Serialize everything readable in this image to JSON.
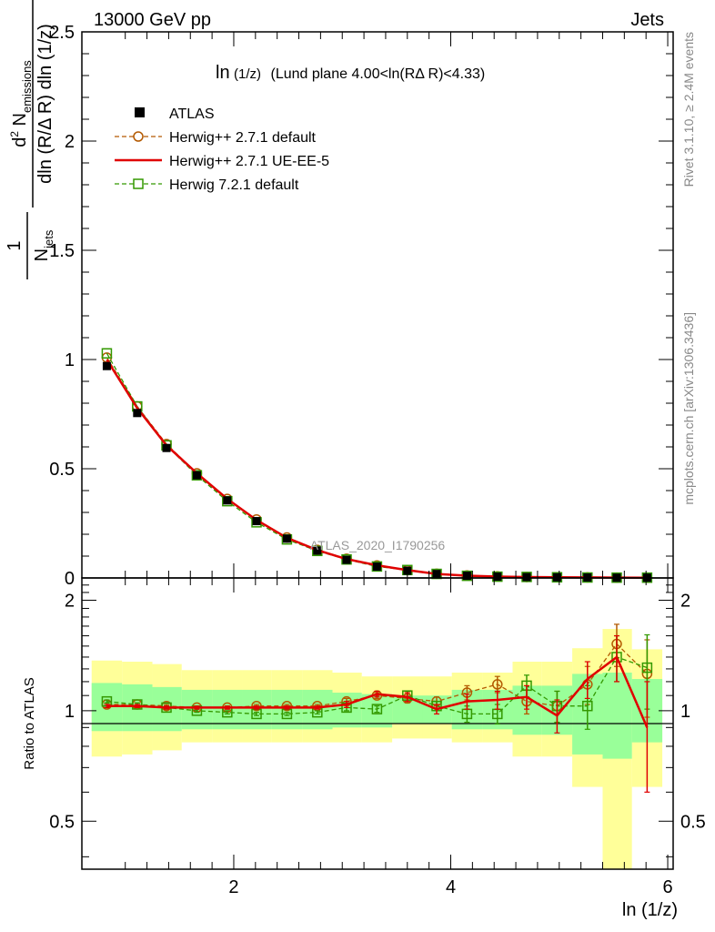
{
  "header": {
    "left": "13000 GeV pp",
    "right": "Jets",
    "subtitle_main": "ln",
    "subtitle_arg": "(1/z)",
    "subtitle_rest": "(Lund plane 4.00<ln(RΔ R)<4.33)",
    "watermark": "ATLAS_2020_I1790256",
    "side_rivet": "Rivet 3.1.10, ≥ 2.4M events",
    "side_mcplots": "mcplots.cern.ch [arXiv:1306.3436]"
  },
  "axes": {
    "ylabel_top": "1/N_jets d²N_emissions / dln(R/ΔR) dln(1/z)",
    "ylabel_bottom": "Ratio to ATLAS",
    "xlabel": "ln (1/z)",
    "top_yticks": [
      "0",
      "0.5",
      "1",
      "1.5",
      "2",
      "2.5"
    ],
    "bottom_yticks": [
      "0.5",
      "1",
      "2"
    ],
    "xticks": [
      "2",
      "4",
      "6"
    ]
  },
  "legend": [
    {
      "label": "ATLAS",
      "style": "data",
      "color": "#000000"
    },
    {
      "label": "Herwig++ 2.7.1 default",
      "style": "circle-dashed",
      "color": "#b35900"
    },
    {
      "label": "Herwig++ 2.7.1 UE-EE-5",
      "style": "solid",
      "color": "#e00000"
    },
    {
      "label": "Herwig 7.2.1 default",
      "style": "square-dashed",
      "color": "#339900"
    }
  ],
  "colors": {
    "band_outer": "#ffff99",
    "band_inner": "#99ff99",
    "data": "#000000",
    "h271_default": "#b35900",
    "h271_ueee5": "#e00000",
    "h721_default": "#339900"
  },
  "chart_data": {
    "type": "line",
    "xlim": [
      0.6,
      6.05
    ],
    "ylim_main": [
      0,
      2.5
    ],
    "ylim_ratio": [
      0.37,
      2.3
    ],
    "ratio_scale": "log",
    "x": [
      0.83,
      1.11,
      1.38,
      1.66,
      1.94,
      2.21,
      2.49,
      2.77,
      3.04,
      3.32,
      3.6,
      3.87,
      4.15,
      4.43,
      4.7,
      4.98,
      5.26,
      5.53,
      5.81
    ],
    "bin_edges": [
      0.69,
      0.97,
      1.25,
      1.52,
      1.8,
      2.08,
      2.35,
      2.63,
      2.91,
      3.18,
      3.46,
      3.74,
      4.01,
      4.29,
      4.57,
      4.84,
      5.12,
      5.4,
      5.67,
      5.95
    ],
    "data_values": [
      0.97,
      0.755,
      0.595,
      0.47,
      0.355,
      0.26,
      0.18,
      0.125,
      0.083,
      0.052,
      0.033,
      0.018,
      0.01,
      0.006,
      0.004,
      0.003,
      0.002,
      0.001,
      0.001
    ],
    "band_outer": [
      [
        0.75,
        1.37
      ],
      [
        0.76,
        1.36
      ],
      [
        0.78,
        1.34
      ],
      [
        0.82,
        1.29
      ],
      [
        0.82,
        1.29
      ],
      [
        0.82,
        1.29
      ],
      [
        0.82,
        1.29
      ],
      [
        0.82,
        1.29
      ],
      [
        0.82,
        1.27
      ],
      [
        0.82,
        1.24
      ],
      [
        0.84,
        1.24
      ],
      [
        0.84,
        1.24
      ],
      [
        0.82,
        1.27
      ],
      [
        0.82,
        1.27
      ],
      [
        0.75,
        1.36
      ],
      [
        0.75,
        1.36
      ],
      [
        0.62,
        1.48
      ],
      [
        0.36,
        1.67
      ],
      [
        0.62,
        1.47
      ]
    ],
    "band_inner": [
      [
        0.88,
        1.19
      ],
      [
        0.88,
        1.18
      ],
      [
        0.88,
        1.16
      ],
      [
        0.89,
        1.14
      ],
      [
        0.89,
        1.14
      ],
      [
        0.89,
        1.14
      ],
      [
        0.89,
        1.14
      ],
      [
        0.89,
        1.14
      ],
      [
        0.9,
        1.12
      ],
      [
        0.9,
        1.11
      ],
      [
        0.92,
        1.1
      ],
      [
        0.92,
        1.1
      ],
      [
        0.89,
        1.14
      ],
      [
        0.89,
        1.14
      ],
      [
        0.86,
        1.17
      ],
      [
        0.86,
        1.17
      ],
      [
        0.76,
        1.26
      ],
      [
        0.74,
        1.27
      ],
      [
        0.82,
        1.22
      ]
    ],
    "series": [
      {
        "name": "Herwig++ 2.7.1 default",
        "color": "#b35900",
        "ratio": [
          1.04,
          1.04,
          1.03,
          1.02,
          1.02,
          1.03,
          1.03,
          1.03,
          1.06,
          1.1,
          1.08,
          1.06,
          1.12,
          1.18,
          1.06,
          1.03,
          1.18,
          1.52,
          1.26
        ],
        "err": [
          0.01,
          0.01,
          0.01,
          0.01,
          0.01,
          0.01,
          0.01,
          0.01,
          0.02,
          0.02,
          0.03,
          0.03,
          0.05,
          0.06,
          0.08,
          0.1,
          0.14,
          0.2,
          0.3
        ]
      },
      {
        "name": "Herwig++ 2.7.1 UE-EE-5",
        "color": "#e00000",
        "ratio": [
          1.03,
          1.03,
          1.02,
          1.02,
          1.02,
          1.02,
          1.02,
          1.02,
          1.04,
          1.11,
          1.09,
          1.01,
          1.06,
          1.07,
          1.09,
          0.97,
          1.22,
          1.4,
          0.9
        ],
        "err": [
          0.01,
          0.01,
          0.01,
          0.01,
          0.01,
          0.01,
          0.01,
          0.01,
          0.02,
          0.02,
          0.03,
          0.03,
          0.05,
          0.06,
          0.08,
          0.1,
          0.14,
          0.2,
          0.3
        ]
      },
      {
        "name": "Herwig 7.2.1 default",
        "color": "#339900",
        "ratio": [
          1.06,
          1.04,
          1.02,
          1.0,
          0.99,
          0.98,
          0.98,
          0.99,
          1.02,
          1.01,
          1.1,
          1.03,
          0.98,
          0.98,
          1.17,
          1.03,
          1.03,
          1.4,
          1.31
        ],
        "err": [
          0.01,
          0.01,
          0.01,
          0.01,
          0.01,
          0.01,
          0.01,
          0.01,
          0.02,
          0.02,
          0.03,
          0.03,
          0.05,
          0.06,
          0.08,
          0.1,
          0.14,
          0.2,
          0.3
        ]
      }
    ]
  }
}
